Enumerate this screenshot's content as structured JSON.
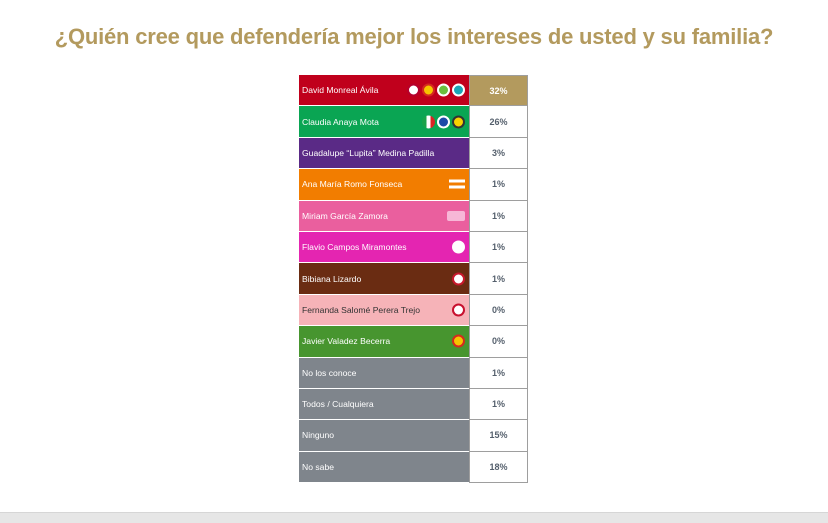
{
  "title": "¿Quién cree que defendería mejor los intereses de usted y su familia?",
  "colors": {
    "title": "#b39a5e",
    "highlight": "#b39a5e",
    "value_text": "#545f6c",
    "gray_row": "#7f858c"
  },
  "chart_data": {
    "type": "table",
    "title": "¿Quién cree que defendería mejor los intereses de usted y su familia?",
    "rows": [
      {
        "name": "David Monreal Ávila",
        "value": "32%",
        "percent": 32,
        "color": "#c0001c",
        "logos": [
          "morena-logo-icon",
          "pt-logo-icon",
          "pvem-logo-icon",
          "panal-logo-icon"
        ]
      },
      {
        "name": "Claudia Anaya Mota",
        "value": "26%",
        "percent": 26,
        "color": "#0aa553",
        "logos": [
          "pri-logo-icon",
          "pan-logo-icon",
          "prd-logo-icon"
        ]
      },
      {
        "name": "Guadalupe “Lupita” Medina Padilla",
        "value": "3%",
        "percent": 3,
        "color": "#5a2a86",
        "logos": [
          "pes-logo-icon"
        ]
      },
      {
        "name": "Ana María Romo Fonseca",
        "value": "1%",
        "percent": 1,
        "color": "#f27d00",
        "logos": [
          "mc-logo-icon"
        ]
      },
      {
        "name": "Miriam García Zamora",
        "value": "1%",
        "percent": 1,
        "color": "#ea5f9e",
        "logos": [
          "fxm-logo-icon"
        ]
      },
      {
        "name": "Flavio Campos Miramontes",
        "value": "1%",
        "percent": 1,
        "color": "#e425b1",
        "logos": [
          "paz-logo-icon"
        ]
      },
      {
        "name": "Bibiana Lizardo",
        "value": "1%",
        "percent": 1,
        "color": "#6a2c12",
        "logos": [
          "mdz-logo-icon"
        ]
      },
      {
        "name": "Fernanda Salomé Perera Trejo",
        "value": "0%",
        "percent": 0,
        "color": "#f6b3b8",
        "text_color": "#333333",
        "logos": [
          "rsp-logo-icon"
        ]
      },
      {
        "name": "Javier Valadez Becerra",
        "value": "0%",
        "percent": 0,
        "color": "#47952f",
        "logos": [
          "pt-logo-icon"
        ]
      },
      {
        "name": "No los conoce",
        "value": "1%",
        "percent": 1,
        "color": "#7f858c",
        "logos": []
      },
      {
        "name": "Todos / Cualquiera",
        "value": "1%",
        "percent": 1,
        "color": "#7f858c",
        "logos": []
      },
      {
        "name": "Ninguno",
        "value": "15%",
        "percent": 15,
        "color": "#7f858c",
        "logos": []
      },
      {
        "name": "No sabe",
        "value": "18%",
        "percent": 18,
        "color": "#7f858c",
        "logos": []
      }
    ]
  }
}
